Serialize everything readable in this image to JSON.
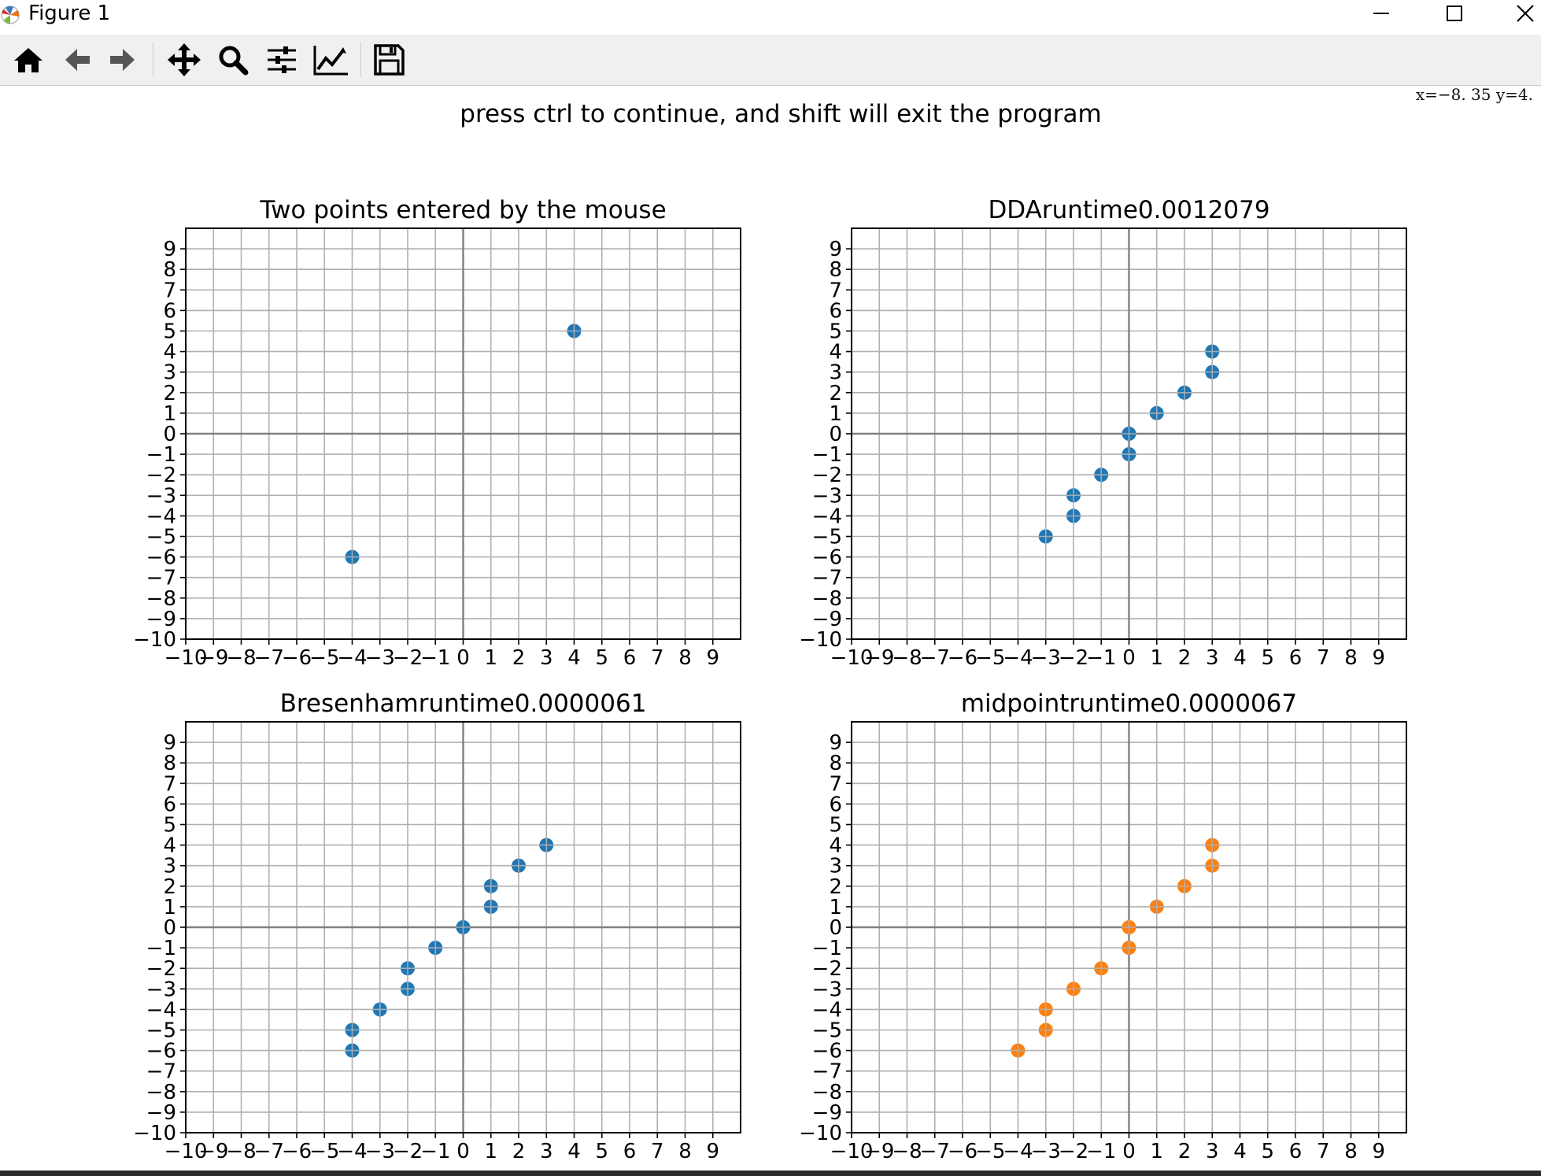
{
  "window": {
    "title": "Figure 1",
    "minimize_icon": "minimize-icon",
    "maximize_icon": "maximize-icon",
    "close_icon": "close-icon"
  },
  "toolbar": {
    "buttons": [
      {
        "name": "home",
        "icon": "home-icon"
      },
      {
        "name": "back",
        "icon": "arrow-left-icon"
      },
      {
        "name": "forward",
        "icon": "arrow-right-icon"
      },
      {
        "name": "pan",
        "icon": "move-arrows-icon"
      },
      {
        "name": "zoom",
        "icon": "magnifier-icon"
      },
      {
        "name": "configure-subplots",
        "icon": "sliders-icon"
      },
      {
        "name": "edit-axis",
        "icon": "line-chart-icon"
      },
      {
        "name": "save",
        "icon": "floppy-disk-icon"
      }
    ],
    "coordinate_readout": "x=−8. 35  y=4."
  },
  "figure": {
    "suptitle": "press ctrl to continue, and shift will exit the program"
  },
  "chart_data": [
    {
      "type": "scatter",
      "title": "Two points entered by the mouse",
      "xlim": [
        -10,
        10
      ],
      "ylim": [
        -10,
        10
      ],
      "xticks": [
        "−10",
        "−9",
        "−8",
        "−7",
        "−6",
        "−5",
        "−4",
        "−3",
        "−2",
        "−1",
        "0",
        "1",
        "2",
        "3",
        "4",
        "5",
        "6",
        "7",
        "8",
        "9"
      ],
      "yticks": [
        "−10",
        "−9",
        "−8",
        "−7",
        "−6",
        "−5",
        "−4",
        "−3",
        "−2",
        "−1",
        "0",
        "1",
        "2",
        "3",
        "4",
        "5",
        "6",
        "7",
        "8",
        "9"
      ],
      "grid": true,
      "color": "#1f77b4",
      "points": [
        [
          -4,
          -6
        ],
        [
          4,
          5
        ]
      ]
    },
    {
      "type": "scatter",
      "title": "DDAruntime0.0012079",
      "xlim": [
        -10,
        10
      ],
      "ylim": [
        -10,
        10
      ],
      "xticks": [
        "−10",
        "−9",
        "−8",
        "−7",
        "−6",
        "−5",
        "−4",
        "−3",
        "−2",
        "−1",
        "0",
        "1",
        "2",
        "3",
        "4",
        "5",
        "6",
        "7",
        "8",
        "9"
      ],
      "yticks": [
        "−10",
        "−9",
        "−8",
        "−7",
        "−6",
        "−5",
        "−4",
        "−3",
        "−2",
        "−1",
        "0",
        "1",
        "2",
        "3",
        "4",
        "5",
        "6",
        "7",
        "8",
        "9"
      ],
      "grid": true,
      "color": "#1f77b4",
      "points": [
        [
          -3,
          -5
        ],
        [
          -2,
          -4
        ],
        [
          -2,
          -3
        ],
        [
          -1,
          -2
        ],
        [
          0,
          -1
        ],
        [
          0,
          0
        ],
        [
          1,
          1
        ],
        [
          2,
          2
        ],
        [
          3,
          3
        ],
        [
          3,
          4
        ]
      ]
    },
    {
      "type": "scatter",
      "title": "Bresenhamruntime0.0000061",
      "xlim": [
        -10,
        10
      ],
      "ylim": [
        -10,
        10
      ],
      "xticks": [
        "−10",
        "−9",
        "−8",
        "−7",
        "−6",
        "−5",
        "−4",
        "−3",
        "−2",
        "−1",
        "0",
        "1",
        "2",
        "3",
        "4",
        "5",
        "6",
        "7",
        "8",
        "9"
      ],
      "yticks": [
        "−10",
        "−9",
        "−8",
        "−7",
        "−6",
        "−5",
        "−4",
        "−3",
        "−2",
        "−1",
        "0",
        "1",
        "2",
        "3",
        "4",
        "5",
        "6",
        "7",
        "8",
        "9"
      ],
      "grid": true,
      "color": "#1f77b4",
      "points": [
        [
          -4,
          -6
        ],
        [
          -4,
          -5
        ],
        [
          -3,
          -4
        ],
        [
          -2,
          -3
        ],
        [
          -2,
          -2
        ],
        [
          -1,
          -1
        ],
        [
          0,
          0
        ],
        [
          1,
          1
        ],
        [
          1,
          2
        ],
        [
          2,
          3
        ],
        [
          3,
          4
        ]
      ]
    },
    {
      "type": "scatter",
      "title": "midpointruntime0.0000067",
      "xlim": [
        -10,
        10
      ],
      "ylim": [
        -10,
        10
      ],
      "xticks": [
        "−10",
        "−9",
        "−8",
        "−7",
        "−6",
        "−5",
        "−4",
        "−3",
        "−2",
        "−1",
        "0",
        "1",
        "2",
        "3",
        "4",
        "5",
        "6",
        "7",
        "8",
        "9"
      ],
      "yticks": [
        "−10",
        "−9",
        "−8",
        "−7",
        "−6",
        "−5",
        "−4",
        "−3",
        "−2",
        "−1",
        "0",
        "1",
        "2",
        "3",
        "4",
        "5",
        "6",
        "7",
        "8",
        "9"
      ],
      "grid": true,
      "color": "#ff7f0e",
      "points": [
        [
          -4,
          -6
        ],
        [
          -3,
          -5
        ],
        [
          -3,
          -4
        ],
        [
          -2,
          -3
        ],
        [
          -1,
          -2
        ],
        [
          0,
          -1
        ],
        [
          0,
          0
        ],
        [
          1,
          1
        ],
        [
          2,
          2
        ],
        [
          3,
          3
        ],
        [
          3,
          4
        ]
      ]
    }
  ]
}
